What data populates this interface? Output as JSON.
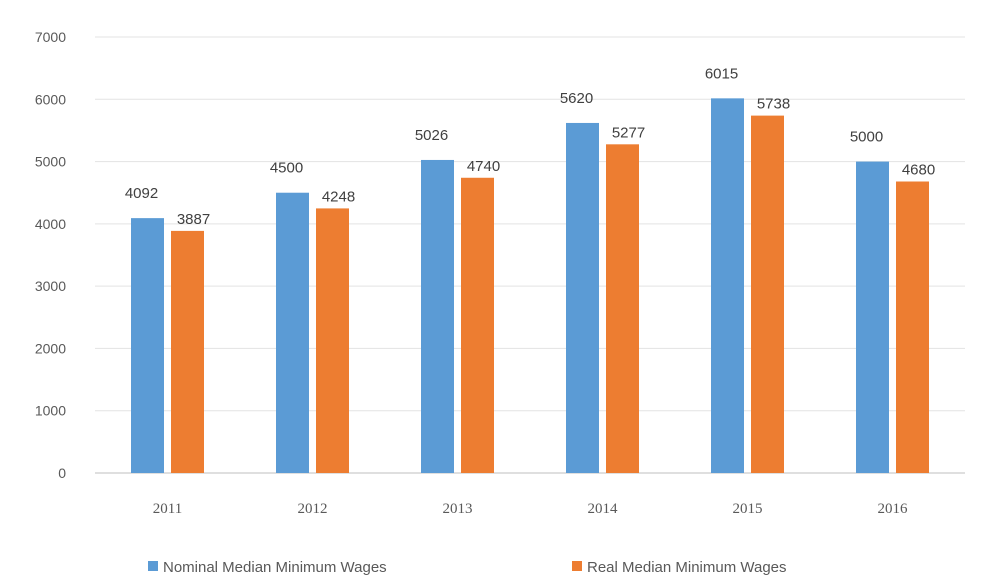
{
  "chart_data": {
    "type": "bar",
    "categories": [
      "2011",
      "2012",
      "2013",
      "2014",
      "2015",
      "2016"
    ],
    "series": [
      {
        "name": "Nominal Median Minimum Wages",
        "values": [
          4092,
          4500,
          5026,
          5620,
          6015,
          5000
        ],
        "color": "#5B9BD5"
      },
      {
        "name": "Real Median Minimum Wages",
        "values": [
          3887,
          4248,
          4740,
          5277,
          5738,
          4680
        ],
        "color": "#ED7D31"
      }
    ],
    "ylim": [
      0,
      7000
    ],
    "yticks": [
      0,
      1000,
      2000,
      3000,
      4000,
      5000,
      6000,
      7000
    ],
    "grid": true,
    "legend_position": "bottom"
  }
}
